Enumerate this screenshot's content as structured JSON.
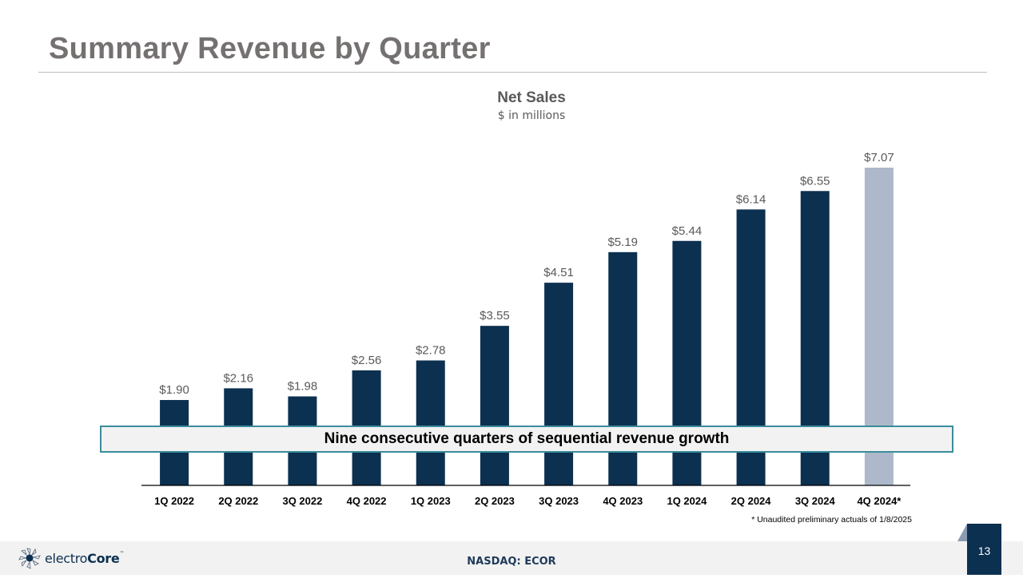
{
  "slide": {
    "title": "Summary Revenue by Quarter",
    "callout": "Nine consecutive quarters of sequential revenue growth",
    "footnote": "* Unaudited preliminary actuals of 1/8/2025",
    "footer": {
      "logo_text_light": "electro",
      "logo_text_bold": "Core",
      "logo_tm": "™",
      "ticker": "NASDAQ: ECOR",
      "page_number": "13"
    }
  },
  "colors": {
    "bar_actual": "#0c3050",
    "bar_preliminary": "#adb9ca",
    "callout_border": "#3a8c9c",
    "title_gray": "#767171"
  },
  "chart_data": {
    "type": "bar",
    "title": "Net Sales",
    "subtitle": "$ in millions",
    "xlabel": "",
    "ylabel": "",
    "categories": [
      "1Q 2022",
      "2Q 2022",
      "3Q 2022",
      "4Q 2022",
      "1Q 2023",
      "2Q 2023",
      "3Q 2023",
      "4Q 2023",
      "1Q 2024",
      "2Q 2024",
      "3Q 2024",
      "4Q 2024*"
    ],
    "values": [
      1.9,
      2.16,
      1.98,
      2.56,
      2.78,
      3.55,
      4.51,
      5.19,
      5.44,
      6.14,
      6.55,
      7.07
    ],
    "data_labels": [
      "$1.90",
      "$2.16",
      "$1.98",
      "$2.56",
      "$2.78",
      "$3.55",
      "$4.51",
      "$5.19",
      "$5.44",
      "$6.14",
      "$6.55",
      "$7.07"
    ],
    "preliminary": [
      false,
      false,
      false,
      false,
      false,
      false,
      false,
      false,
      false,
      false,
      false,
      true
    ],
    "ylim": [
      0,
      7.07
    ],
    "grid": false,
    "legend": "none"
  }
}
